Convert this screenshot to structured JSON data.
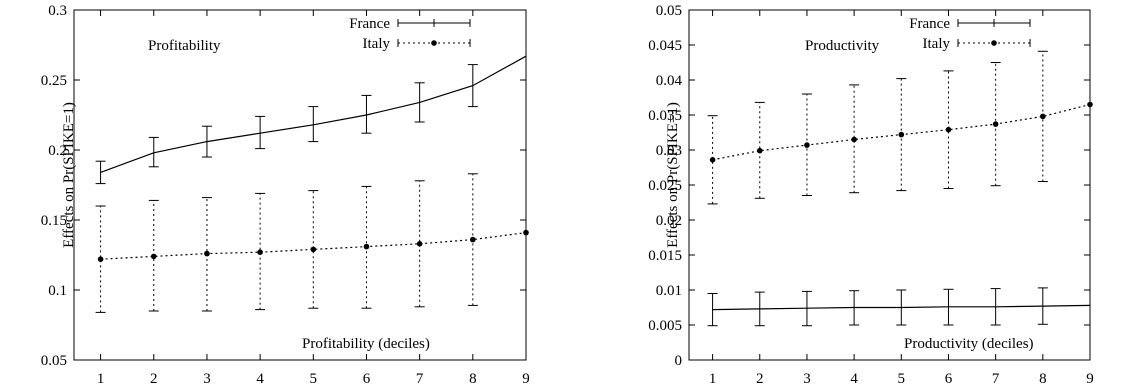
{
  "chart_data": [
    {
      "type": "line",
      "title": "Profitability",
      "xlabel": "Profitability (deciles)",
      "ylabel": "Effects on Pr(SPIKE=1)",
      "x": [
        1,
        2,
        3,
        4,
        5,
        6,
        7,
        8,
        9
      ],
      "xlim": [
        0.5,
        9
      ],
      "ylim": [
        0.05,
        0.3
      ],
      "xticks": [
        "1",
        "2",
        "3",
        "4",
        "5",
        "6",
        "7",
        "8",
        "9"
      ],
      "yticks": [
        "0.05",
        "0.1",
        "0.15",
        "0.2",
        "0.25",
        "0.3"
      ],
      "legend_position": "top-right",
      "series": [
        {
          "name": "France",
          "style": "solid",
          "values": [
            0.184,
            0.198,
            0.206,
            0.212,
            0.218,
            0.225,
            0.234,
            0.246,
            0.267
          ],
          "lower": [
            0.176,
            0.188,
            0.195,
            0.201,
            0.206,
            0.212,
            0.22,
            0.231,
            null
          ],
          "upper": [
            0.192,
            0.209,
            0.217,
            0.224,
            0.231,
            0.239,
            0.248,
            0.261,
            null
          ]
        },
        {
          "name": "Italy",
          "style": "dotted",
          "values": [
            0.122,
            0.124,
            0.126,
            0.127,
            0.129,
            0.131,
            0.133,
            0.136,
            0.141
          ],
          "lower": [
            0.084,
            0.085,
            0.085,
            0.086,
            0.087,
            0.087,
            0.088,
            0.089,
            null
          ],
          "upper": [
            0.16,
            0.164,
            0.166,
            0.169,
            0.171,
            0.174,
            0.178,
            0.183,
            null
          ]
        }
      ]
    },
    {
      "type": "line",
      "title": "Productivity",
      "xlabel": "Productivity (deciles)",
      "ylabel": "Effects on Pr(SPIKE=1)",
      "x": [
        1,
        2,
        3,
        4,
        5,
        6,
        7,
        8,
        9
      ],
      "xlim": [
        0.5,
        9
      ],
      "ylim": [
        0,
        0.05
      ],
      "xticks": [
        "1",
        "2",
        "3",
        "4",
        "5",
        "6",
        "7",
        "8",
        "9"
      ],
      "yticks": [
        "0",
        "0.005",
        "0.01",
        "0.015",
        "0.02",
        "0.025",
        "0.03",
        "0.035",
        "0.04",
        "0.045",
        "0.05"
      ],
      "legend_position": "top-right",
      "series": [
        {
          "name": "France",
          "style": "solid",
          "values": [
            0.0072,
            0.0073,
            0.0074,
            0.0075,
            0.0075,
            0.0076,
            0.0076,
            0.0077,
            0.0078
          ],
          "lower": [
            0.0049,
            0.0049,
            0.0049,
            0.005,
            0.005,
            0.005,
            0.005,
            0.0051,
            null
          ],
          "upper": [
            0.0095,
            0.0097,
            0.0098,
            0.0099,
            0.01,
            0.0101,
            0.0102,
            0.0103,
            null
          ]
        },
        {
          "name": "Italy",
          "style": "dotted",
          "values": [
            0.0286,
            0.0299,
            0.0307,
            0.0315,
            0.0322,
            0.0329,
            0.0337,
            0.0348,
            0.0365
          ],
          "lower": [
            0.0223,
            0.0231,
            0.0235,
            0.0239,
            0.0242,
            0.0245,
            0.0249,
            0.0255,
            null
          ],
          "upper": [
            0.0349,
            0.0368,
            0.038,
            0.0393,
            0.0402,
            0.0413,
            0.0425,
            0.0441,
            null
          ]
        }
      ]
    }
  ]
}
